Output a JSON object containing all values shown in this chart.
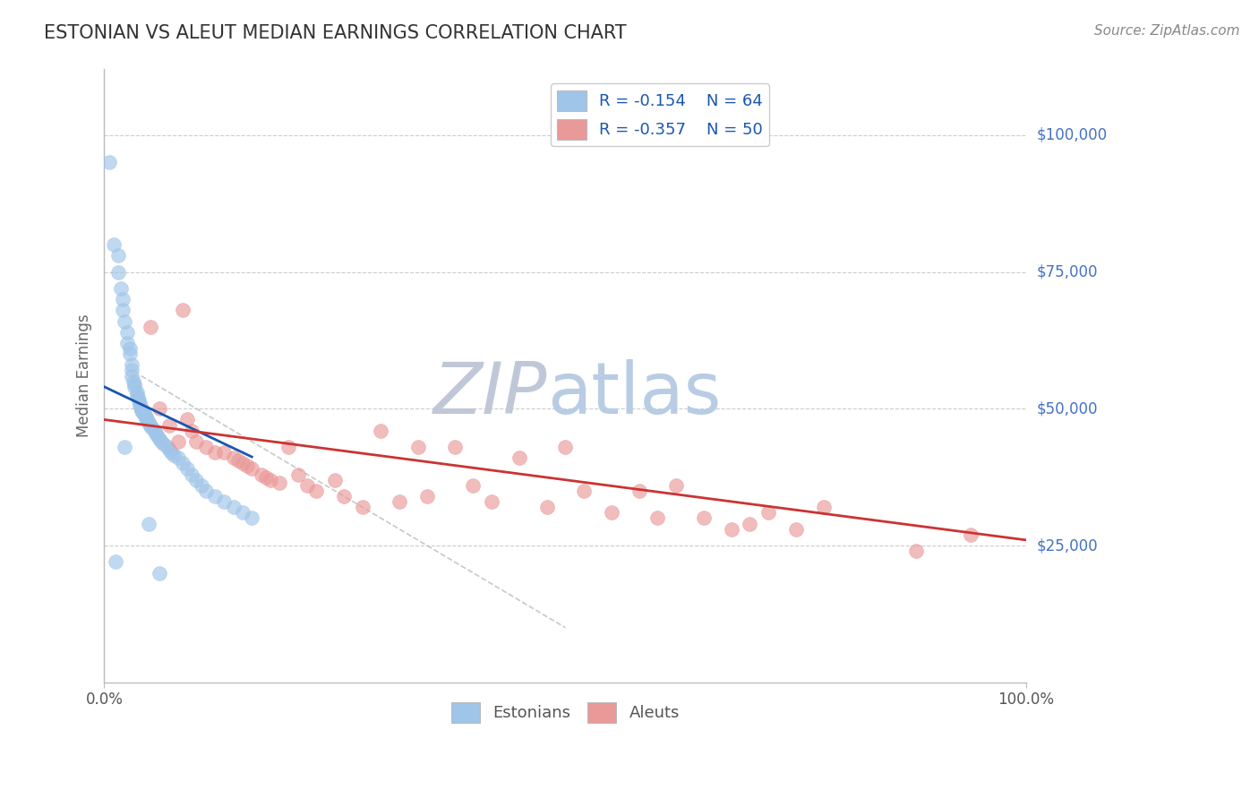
{
  "title": "ESTONIAN VS ALEUT MEDIAN EARNINGS CORRELATION CHART",
  "source_text": "Source: ZipAtlas.com",
  "ylabel": "Median Earnings",
  "xlim": [
    0.0,
    1.0
  ],
  "ylim": [
    0,
    112000
  ],
  "watermark_zip": "ZIP",
  "watermark_atlas": "atlas",
  "watermark_zip_color": "#c0c8d8",
  "watermark_atlas_color": "#b8cce4",
  "background_color": "#ffffff",
  "grid_color": "#cccccc",
  "title_color": "#333333",
  "ylabel_color": "#666666",
  "ytick_color": "#4472c4",
  "xtick_color": "#555555",
  "source_color": "#888888",
  "legend_R1": "R = -0.154",
  "legend_N1": "N = 64",
  "legend_R2": "R = -0.357",
  "legend_N2": "N = 50",
  "blue_color": "#9fc5e8",
  "pink_color": "#ea9999",
  "blue_line_color": "#1a56b0",
  "pink_line_color": "#cc3333",
  "ref_line_color": "#bbbbbb",
  "estonians_x": [
    0.005,
    0.01,
    0.015,
    0.015,
    0.018,
    0.02,
    0.02,
    0.022,
    0.025,
    0.025,
    0.028,
    0.028,
    0.03,
    0.03,
    0.03,
    0.032,
    0.033,
    0.033,
    0.035,
    0.035,
    0.036,
    0.037,
    0.038,
    0.038,
    0.04,
    0.04,
    0.04,
    0.042,
    0.043,
    0.044,
    0.045,
    0.045,
    0.046,
    0.047,
    0.048,
    0.05,
    0.05,
    0.052,
    0.055,
    0.056,
    0.058,
    0.06,
    0.062,
    0.065,
    0.068,
    0.07,
    0.072,
    0.075,
    0.08,
    0.085,
    0.09,
    0.095,
    0.1,
    0.105,
    0.11,
    0.12,
    0.13,
    0.14,
    0.15,
    0.16,
    0.012,
    0.022,
    0.048,
    0.06
  ],
  "estonians_y": [
    95000,
    80000,
    78000,
    75000,
    72000,
    70000,
    68000,
    66000,
    64000,
    62000,
    61000,
    60000,
    58000,
    57000,
    56000,
    55000,
    54500,
    54000,
    53000,
    52500,
    52000,
    51500,
    51000,
    50500,
    50000,
    49800,
    49500,
    49200,
    49000,
    48800,
    48500,
    48200,
    48000,
    47800,
    47500,
    47000,
    46800,
    46500,
    46000,
    45500,
    45000,
    44500,
    44000,
    43500,
    43000,
    42500,
    42000,
    41500,
    41000,
    40000,
    39000,
    38000,
    37000,
    36000,
    35000,
    34000,
    33000,
    32000,
    31000,
    30000,
    22000,
    43000,
    29000,
    20000
  ],
  "aleuts_x": [
    0.05,
    0.06,
    0.07,
    0.08,
    0.085,
    0.09,
    0.095,
    0.1,
    0.11,
    0.12,
    0.13,
    0.14,
    0.145,
    0.15,
    0.155,
    0.16,
    0.17,
    0.175,
    0.18,
    0.19,
    0.2,
    0.21,
    0.22,
    0.23,
    0.25,
    0.26,
    0.28,
    0.3,
    0.32,
    0.34,
    0.35,
    0.38,
    0.4,
    0.42,
    0.45,
    0.48,
    0.5,
    0.52,
    0.55,
    0.58,
    0.6,
    0.62,
    0.65,
    0.68,
    0.7,
    0.72,
    0.75,
    0.78,
    0.88,
    0.94
  ],
  "aleuts_y": [
    65000,
    50000,
    47000,
    44000,
    68000,
    48000,
    46000,
    44000,
    43000,
    42000,
    42000,
    41000,
    40500,
    40000,
    39500,
    39000,
    38000,
    37500,
    37000,
    36500,
    43000,
    38000,
    36000,
    35000,
    37000,
    34000,
    32000,
    46000,
    33000,
    43000,
    34000,
    43000,
    36000,
    33000,
    41000,
    32000,
    43000,
    35000,
    31000,
    35000,
    30000,
    36000,
    30000,
    28000,
    29000,
    31000,
    28000,
    32000,
    24000,
    27000
  ],
  "diag_line_x": [
    0.04,
    0.5
  ],
  "diag_line_y": [
    56000,
    10000
  ],
  "blue_line_x": [
    0.005,
    0.16
  ],
  "blue_line_intercept": 54000,
  "blue_line_slope": -80000,
  "pink_line_x": [
    0.0,
    1.0
  ],
  "pink_line_intercept": 48000,
  "pink_line_slope": -22000
}
